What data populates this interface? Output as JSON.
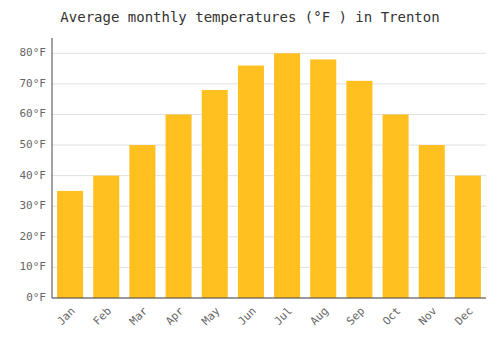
{
  "chart_data": {
    "type": "bar",
    "title": "Average monthly temperatures (°F ) in Trenton",
    "categories": [
      "Jan",
      "Feb",
      "Mar",
      "Apr",
      "May",
      "Jun",
      "Jul",
      "Aug",
      "Sep",
      "Oct",
      "Nov",
      "Dec"
    ],
    "values": [
      35,
      40,
      50,
      60,
      68,
      76,
      80,
      78,
      71,
      60,
      50,
      40
    ],
    "color": "#FFC020",
    "ylim": [
      0,
      85
    ],
    "yticks": [
      {
        "value": 0,
        "label": "0°F"
      },
      {
        "value": 10,
        "label": "10°F"
      },
      {
        "value": 20,
        "label": "20°F"
      },
      {
        "value": 30,
        "label": "30°F"
      },
      {
        "value": 40,
        "label": "40°F"
      },
      {
        "value": 50,
        "label": "50°F"
      },
      {
        "value": 60,
        "label": "60°F"
      },
      {
        "value": 70,
        "label": "70°F"
      },
      {
        "value": 80,
        "label": "80°F"
      }
    ],
    "grid": true
  }
}
